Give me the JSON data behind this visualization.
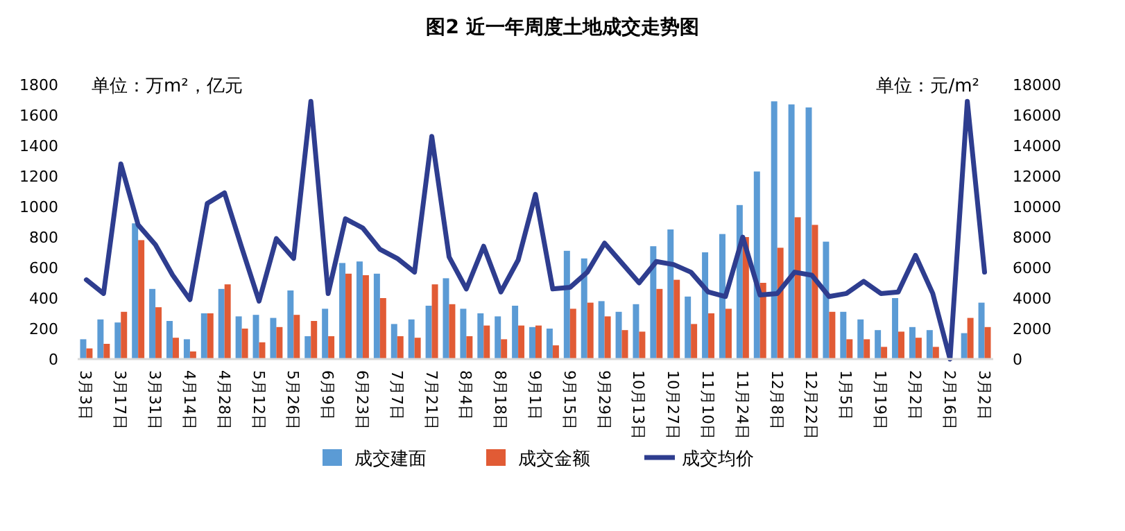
{
  "chart_data": {
    "type": "bar",
    "title": "图2 近一年周度土地成交走势图",
    "categories": [
      "3月3日",
      null,
      "3月17日",
      null,
      "3月31日",
      null,
      "4月14日",
      null,
      "4月28日",
      null,
      "5月12日",
      null,
      "5月26日",
      null,
      "6月9日",
      null,
      "6月23日",
      null,
      "7月7日",
      null,
      "7月21日",
      null,
      "8月4日",
      null,
      "8月18日",
      null,
      "9月1日",
      null,
      "9月15日",
      null,
      "9月29日",
      null,
      "10月13日",
      null,
      "10月27日",
      null,
      "11月10日",
      null,
      "11月24日",
      null,
      "12月8日",
      null,
      "12月22日",
      null,
      "1月5日",
      null,
      "1月19日",
      null,
      "2月2日",
      null,
      "2月16日",
      null,
      "3月2日"
    ],
    "series": [
      {
        "name": "成交建面",
        "color": "#5b9bd5",
        "values": [
          130,
          260,
          240,
          890,
          460,
          250,
          130,
          300,
          460,
          280,
          290,
          270,
          450,
          150,
          330,
          630,
          640,
          560,
          230,
          260,
          350,
          530,
          330,
          300,
          280,
          350,
          210,
          200,
          710,
          660,
          380,
          310,
          360,
          740,
          850,
          410,
          700,
          820,
          1010,
          1230,
          1690,
          1670,
          1650,
          770,
          310,
          260,
          190,
          400,
          210,
          190,
          null,
          170,
          370
        ]
      },
      {
        "name": "成交金额",
        "color": "#e15b35",
        "values": [
          70,
          100,
          310,
          780,
          340,
          140,
          50,
          300,
          490,
          200,
          110,
          210,
          290,
          250,
          150,
          560,
          550,
          400,
          150,
          140,
          490,
          360,
          150,
          220,
          130,
          220,
          220,
          90,
          330,
          370,
          280,
          190,
          180,
          460,
          520,
          230,
          300,
          330,
          800,
          500,
          730,
          930,
          880,
          310,
          130,
          130,
          80,
          180,
          140,
          80,
          null,
          270,
          210
        ]
      },
      {
        "name": "成交均价",
        "type": "line",
        "axis": "y2",
        "color": "#2e3d8f",
        "values": [
          5200,
          4300,
          12800,
          8800,
          7500,
          5500,
          3900,
          10200,
          10900,
          7300,
          3800,
          7900,
          6600,
          16900,
          4300,
          9200,
          8600,
          7200,
          6600,
          5700,
          14600,
          6700,
          4600,
          7400,
          4400,
          6500,
          10800,
          4600,
          4700,
          5700,
          7600,
          6300,
          5000,
          6400,
          6200,
          5700,
          4400,
          4100,
          8000,
          4200,
          4300,
          5700,
          5500,
          4100,
          4300,
          5100,
          4300,
          4400,
          6800,
          4300,
          0,
          16900,
          5700
        ]
      }
    ],
    "ylim": [
      0,
      1800
    ],
    "yticks": [
      0,
      200,
      400,
      600,
      800,
      1000,
      1200,
      1400,
      1600,
      1800
    ],
    "y2lim": [
      0,
      18000
    ],
    "y2ticks": [
      0,
      2000,
      4000,
      6000,
      8000,
      10000,
      12000,
      14000,
      16000,
      18000
    ],
    "annotations": [
      "单位：万m²，亿元",
      "单位：元/m²"
    ],
    "legend": "bottom",
    "grid": false,
    "marker": "none",
    "line_style": "solid"
  }
}
